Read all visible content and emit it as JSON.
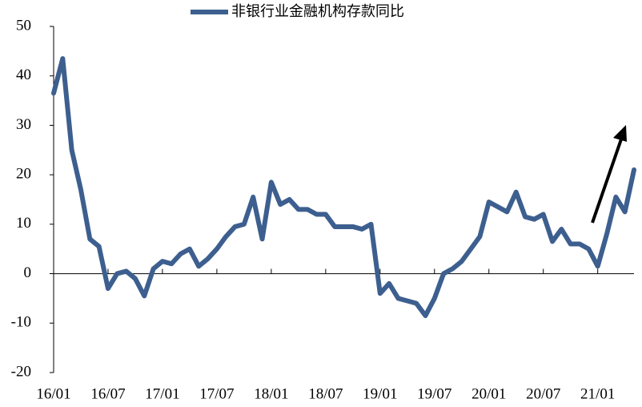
{
  "chart_data": {
    "type": "line",
    "categories": [
      "16/01",
      null,
      null,
      null,
      null,
      null,
      "16/07",
      null,
      null,
      null,
      null,
      null,
      "17/01",
      null,
      null,
      null,
      null,
      null,
      "17/07",
      null,
      null,
      null,
      null,
      null,
      "18/01",
      null,
      null,
      null,
      null,
      null,
      "18/07",
      null,
      null,
      null,
      null,
      null,
      "19/01",
      null,
      null,
      null,
      null,
      null,
      "19/07",
      null,
      null,
      null,
      null,
      null,
      "20/01",
      null,
      null,
      null,
      null,
      null,
      "20/07",
      null,
      null,
      null,
      null,
      null,
      "21/01",
      null,
      null,
      null,
      null
    ],
    "series": [
      {
        "name": "非银行业金融机构存款同比",
        "color": "#3d5f8f",
        "values": [
          36.5,
          43.5,
          25,
          17,
          7,
          5.5,
          -3,
          0,
          0.5,
          -1,
          -4.5,
          1,
          2.5,
          2,
          4,
          5,
          1.5,
          3,
          5,
          7.5,
          9.5,
          10,
          15.5,
          7,
          18.5,
          14,
          15,
          13,
          13,
          12,
          12,
          9.5,
          9.5,
          9.5,
          9,
          10,
          -4,
          -2,
          -5,
          -5.5,
          -6,
          -8.5,
          -5,
          0,
          1,
          2.5,
          5,
          7.5,
          14.5,
          13.5,
          12.5,
          16.5,
          11.5,
          11,
          12,
          6.5,
          9,
          6,
          6,
          5,
          1.5,
          8,
          15.5,
          12.5,
          21
        ]
      }
    ],
    "ylim": [
      -20,
      50
    ],
    "yticks": [
      -20,
      -10,
      0,
      10,
      20,
      30,
      40,
      50
    ],
    "grid": false,
    "legend": "top"
  }
}
